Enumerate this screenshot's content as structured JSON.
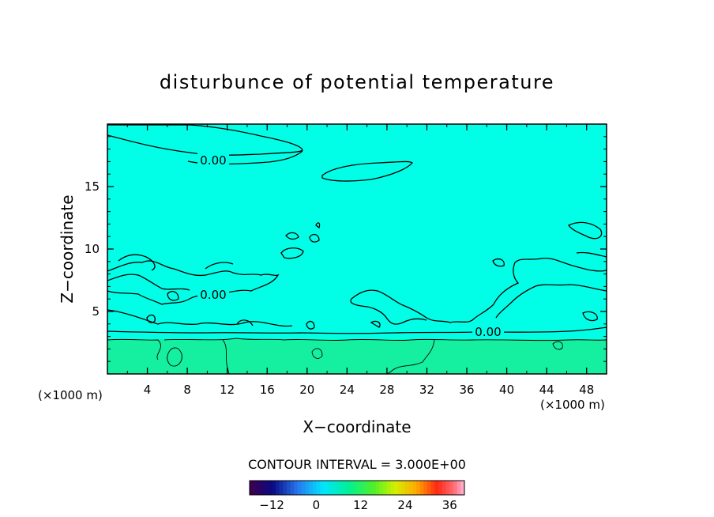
{
  "chart_data": {
    "type": "heatmap",
    "title": "disturbunce of potential temperature",
    "xlabel": "X−coordinate",
    "ylabel": "Z−coordinate",
    "x_unit": "(×1000 m)",
    "xlim": [
      0,
      50
    ],
    "ylim": [
      0,
      20
    ],
    "x_ticks": [
      4,
      8,
      12,
      16,
      20,
      24,
      28,
      32,
      36,
      40,
      44,
      48
    ],
    "y_ticks": [
      5,
      10,
      15
    ],
    "contour_interval_label": "CONTOUR INTERVAL = 3.000E+00",
    "contour_level_label": "0.00",
    "colorbar": {
      "range": [
        -18,
        40
      ],
      "ticks": [
        -12,
        0,
        12,
        24,
        36
      ]
    },
    "colors": {
      "field_upper": "#00ffe6",
      "field_lower": "#14f0a0",
      "contour": "#000000"
    }
  }
}
